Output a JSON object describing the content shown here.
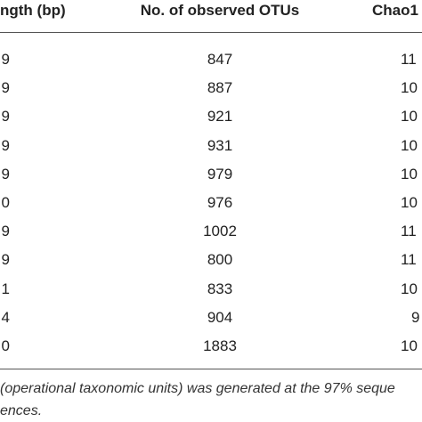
{
  "table": {
    "header": [
      "ngth (bp)",
      "No. of observed OTUs",
      "Chao1"
    ],
    "rows": [
      [
        "9",
        "847",
        "11"
      ],
      [
        "9",
        "887",
        "10"
      ],
      [
        "9",
        "921",
        "10"
      ],
      [
        "9",
        "931",
        "10"
      ],
      [
        "9",
        "979",
        "10"
      ],
      [
        "0",
        "976",
        "10"
      ],
      [
        "9",
        "1002",
        "11"
      ],
      [
        "9",
        "800",
        "11"
      ],
      [
        "1",
        "833",
        "10"
      ],
      [
        "4",
        "904",
        "9"
      ],
      [
        "0",
        "1883",
        "10"
      ]
    ]
  },
  "footnote": [
    "(operational taxonomic units) was generated at the 97% seque",
    "ences."
  ]
}
